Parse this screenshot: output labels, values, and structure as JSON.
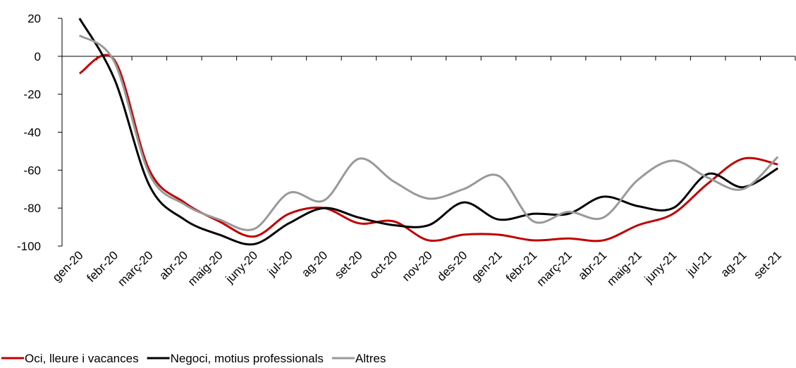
{
  "chart_data": {
    "type": "line",
    "categories": [
      "gen-20",
      "febr-20",
      "març-20",
      "abr-20",
      "maig-20",
      "juny-20",
      "jul-20",
      "ag-20",
      "set-20",
      "oct-20",
      "nov-20",
      "des-20",
      "gen-21",
      "febr-21",
      "març-21",
      "abr-21",
      "maig-21",
      "juny-21",
      "jul-21",
      "ag-21",
      "set-21"
    ],
    "series": [
      {
        "name": "Oci, lleure i vacances",
        "color": "#c00000",
        "values": [
          -9,
          -2,
          -60,
          -77,
          -87,
          -95,
          -83,
          -80,
          -88,
          -87,
          -97,
          -94,
          -94,
          -97,
          -96,
          -97,
          -89,
          -83,
          -67,
          -54,
          -57
        ]
      },
      {
        "name": "Negoci, motius professionals",
        "color": "#000000",
        "values": [
          20,
          -12,
          -68,
          -86,
          -94,
          -99,
          -88,
          -80,
          -85,
          -89,
          -89,
          -77,
          -86,
          -83,
          -83,
          -74,
          -79,
          -80,
          -62,
          -69,
          -59
        ]
      },
      {
        "name": "Altres",
        "color": "#999999",
        "values": [
          11,
          -3,
          -62,
          -78,
          -86,
          -91,
          -72,
          -76,
          -54,
          -66,
          -75,
          -70,
          -63,
          -87,
          -82,
          -85,
          -65,
          -55,
          -64,
          -70,
          -53
        ]
      }
    ],
    "ylim": [
      -100,
      20
    ],
    "yticks": [
      -100,
      -80,
      -60,
      -40,
      -20,
      0,
      20
    ],
    "legend": "bottom-left"
  }
}
